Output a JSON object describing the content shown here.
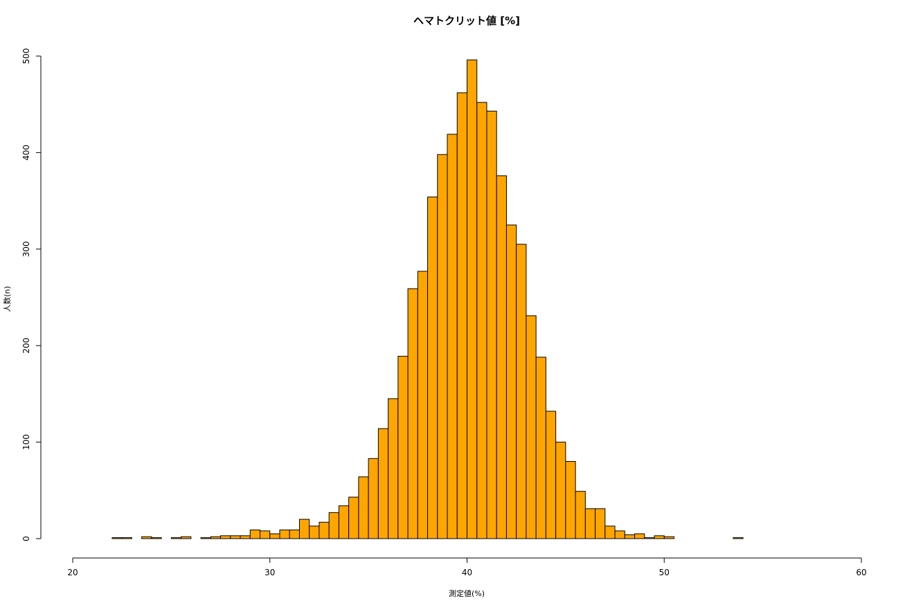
{
  "chart_data": {
    "type": "histogram",
    "title": "ヘマトクリット値 [%]",
    "x_label": "測定値(%)",
    "y_label": "人数(n)",
    "bins": [
      22,
      22.5,
      23,
      23.5,
      24,
      24.5,
      25,
      25.5,
      26,
      26.5,
      27,
      27.5,
      28,
      28.5,
      29,
      29.5,
      30,
      30.5,
      31,
      31.5,
      32,
      32.5,
      33,
      33.5,
      34,
      34.5,
      35,
      35.5,
      36,
      36.5,
      37,
      37.5,
      38,
      38.5,
      39,
      39.5,
      40,
      40.5,
      41,
      41.5,
      42,
      42.5,
      43,
      43.5,
      44,
      44.5,
      45,
      45.5,
      46,
      46.5,
      47,
      47.5,
      48,
      48.5,
      49,
      49.5,
      50,
      50.5,
      51,
      51.5,
      52,
      52.5,
      53,
      53.5,
      54
    ],
    "values": [
      1,
      1,
      0,
      2,
      1,
      0,
      1,
      2,
      0,
      1,
      2,
      3,
      3,
      3,
      9,
      8,
      5,
      9,
      9,
      20,
      13,
      17,
      27,
      34,
      43,
      64,
      83,
      114,
      145,
      189,
      259,
      277,
      354,
      398,
      419,
      462,
      496,
      452,
      443,
      376,
      325,
      305,
      231,
      188,
      132,
      100,
      80,
      49,
      31,
      31,
      13,
      8,
      4,
      5,
      1,
      3,
      2,
      0,
      0,
      0,
      0,
      0,
      0,
      1
    ],
    "color": "#ffa500",
    "xlim": [
      20,
      60
    ],
    "xticks": [
      20,
      30,
      40,
      50,
      60
    ],
    "ylim": [
      0,
      500
    ],
    "yticks": [
      0,
      100,
      200,
      300,
      400,
      500
    ]
  }
}
